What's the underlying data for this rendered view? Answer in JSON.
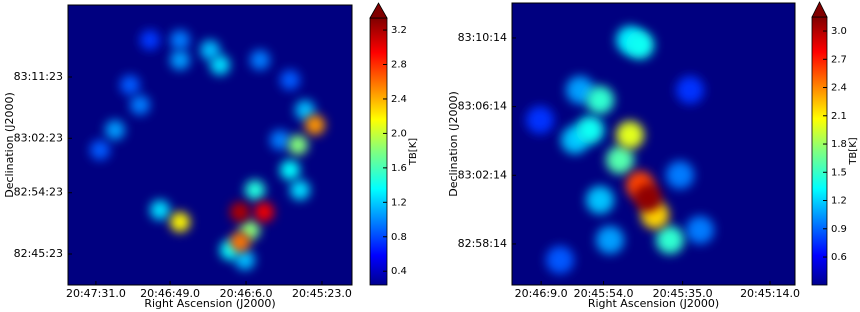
{
  "chart_data": [
    {
      "type": "heatmap",
      "xlabel": "Right Ascension (J2000)",
      "ylabel": "Declination (J2000)",
      "colorbar_label": "TB[K]",
      "xlim": [
        20.796333,
        20.751667
      ],
      "ylim": [
        82.6805,
        83.366
      ],
      "xticks": [
        {
          "value": 20.791944,
          "label": "20:47:31.0"
        },
        {
          "value": 20.780278,
          "label": "20:46:49.0"
        },
        {
          "value": 20.768333,
          "label": "20:46:6.0"
        },
        {
          "value": 20.756389,
          "label": "20:45:23.0"
        }
      ],
      "yticks": [
        {
          "value": 83.189722,
          "label": "83:11:23"
        },
        {
          "value": 83.039722,
          "label": "83:02:23"
        },
        {
          "value": 82.906389,
          "label": "82:54:23"
        },
        {
          "value": 82.756389,
          "label": "82:45:23"
        }
      ],
      "clim": [
        0.24,
        3.34
      ],
      "cticks": [
        0.4,
        0.8,
        1.2,
        1.6,
        {
          "value": 2,
          "label": "2.0"
        },
        2.4,
        2.8,
        3.2
      ],
      "x": [
        20.769283,
        20.765508,
        20.769283,
        20.778719,
        20.757487,
        20.760161,
        20.766924,
        20.76771,
        20.761419,
        20.759846,
        20.781864,
        20.788941,
        20.78501,
        20.778719,
        20.774001,
        20.772428,
        20.766137,
        20.761419,
        20.778719,
        20.786582,
        20.768496,
        20.770855,
        20.75906,
        20.762992,
        20.7913,
        20.783437
      ],
      "y": [
        82.8592,
        82.8592,
        82.7858,
        82.8347,
        83.0722,
        83.0233,
        82.9131,
        82.8152,
        82.962,
        82.9131,
        82.8641,
        83.06,
        83.1212,
        83.2313,
        83.2558,
        83.2191,
        83.2313,
        83.1824,
        83.2803,
        83.1701,
        82.7417,
        82.7662,
        83.1089,
        83.0355,
        83.011,
        83.2803
      ],
      "values": [
        3.2,
        3.0,
        2.6,
        2.2,
        2.5,
        1.8,
        1.5,
        1.8,
        1.4,
        1.3,
        1.3,
        1.1,
        1.0,
        1.1,
        1.2,
        1.3,
        1.0,
        0.9,
        1.0,
        0.9,
        1.2,
        1.4,
        1.2,
        1.0,
        0.9,
        0.8
      ]
    },
    {
      "type": "heatmap",
      "xlabel": "Right Ascension (J2000)",
      "ylabel": "Declination (J2000)",
      "colorbar_label": "TB[K]",
      "xlim": [
        20.771111,
        20.752222
      ],
      "ylim": [
        82.9307,
        83.2045
      ],
      "xticks": [
        {
          "value": 20.769167,
          "label": "20:46:9.0"
        },
        {
          "value": 20.765,
          "label": "20:45:54.0"
        },
        {
          "value": 20.759722,
          "label": "20:45:35.0"
        },
        {
          "value": 20.753889,
          "label": "20:45:14.0"
        }
      ],
      "yticks": [
        {
          "value": 83.170556,
          "label": "83:10:14"
        },
        {
          "value": 83.103889,
          "label": "83:06:14"
        },
        {
          "value": 83.037222,
          "label": "83:02:14"
        },
        {
          "value": 82.970556,
          "label": "82:58:14"
        }
      ],
      "clim": [
        0.303,
        3.149
      ],
      "cticks": [
        0.6,
        0.9,
        1.2,
        1.5,
        1.8,
        2.1,
        2.4,
        2.7,
        {
          "value": 3,
          "label": "3.0"
        }
      ],
      "x": [
        20.762034,
        20.762568,
        20.761566,
        20.763235,
        20.765237,
        20.765905,
        20.763902,
        20.762568,
        20.763235,
        20.766906,
        20.760565,
        20.765237,
        20.759898,
        20.767907,
        20.758563,
        20.769242,
        20.76457,
        20.75923,
        20.766572
      ],
      "y": [
        83.0152,
        83.0278,
        82.9987,
        83.0763,
        83.1103,
        83.0812,
        83.0521,
        83.1637,
        83.1686,
        83.0715,
        82.9744,
        83.0132,
        83.0375,
        82.955,
        82.9841,
        83.0909,
        82.9744,
        83.12,
        83.12
      ],
      "values": [
        3.1,
        2.6,
        2.2,
        2.0,
        1.5,
        1.4,
        1.6,
        1.4,
        1.3,
        1.2,
        1.5,
        1.2,
        1.0,
        0.9,
        1.0,
        0.8,
        1.1,
        0.8,
        1.1
      ]
    }
  ]
}
